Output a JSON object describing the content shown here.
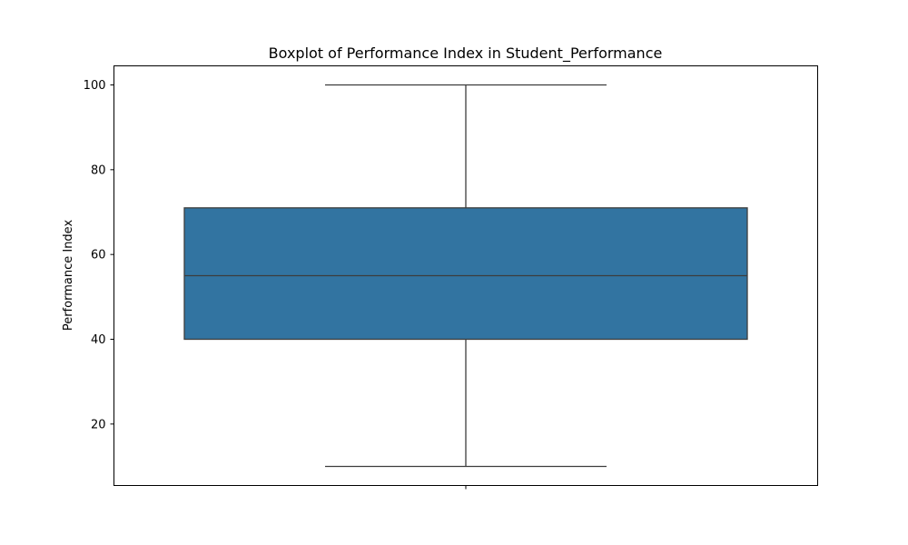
{
  "chart_data": {
    "type": "box",
    "title": "Boxplot of Performance Index in Student_Performance",
    "xlabel": "",
    "ylabel": "Performance Index",
    "ylim": [
      5.5,
      104.5
    ],
    "yticks": [
      20,
      40,
      60,
      80,
      100
    ],
    "grid": false,
    "box": {
      "whisker_low": 10,
      "q1": 40,
      "median": 55,
      "q3": 71,
      "whisker_high": 100
    },
    "colors": {
      "box_fill": "#3274a1",
      "line": "#3d3d3d",
      "axes": "#000000"
    }
  }
}
